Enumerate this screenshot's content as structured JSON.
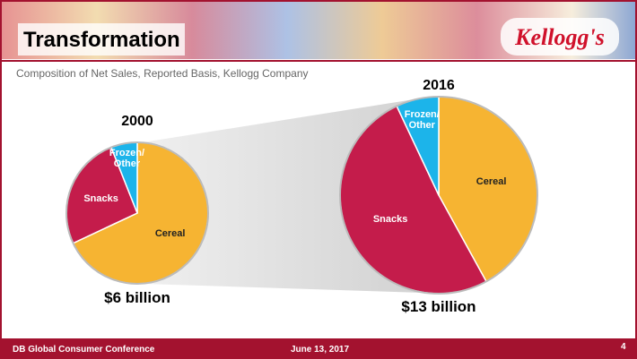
{
  "header": {
    "title": "Transformation",
    "logo": "Kellogg's",
    "subtitle": "Composition of Net Sales, Reported Basis, Kellogg Company"
  },
  "chart_data": [
    {
      "type": "pie",
      "title": "2000",
      "total_label": "$6 billion",
      "categories": [
        "Cereal",
        "Snacks",
        "Frozen/ Other"
      ],
      "values": [
        68,
        26,
        6
      ],
      "colors": [
        "#f6b432",
        "#c41c4b",
        "#1cb4ea"
      ]
    },
    {
      "type": "pie",
      "title": "2016",
      "total_label": "$13 billion",
      "categories": [
        "Cereal",
        "Snacks",
        "Frozen/ Other"
      ],
      "values": [
        42,
        51,
        7
      ],
      "colors": [
        "#f6b432",
        "#c41c4b",
        "#1cb4ea"
      ]
    }
  ],
  "footer": {
    "event": "DB Global Consumer Conference",
    "date": "June 13, 2017",
    "page": "4"
  }
}
